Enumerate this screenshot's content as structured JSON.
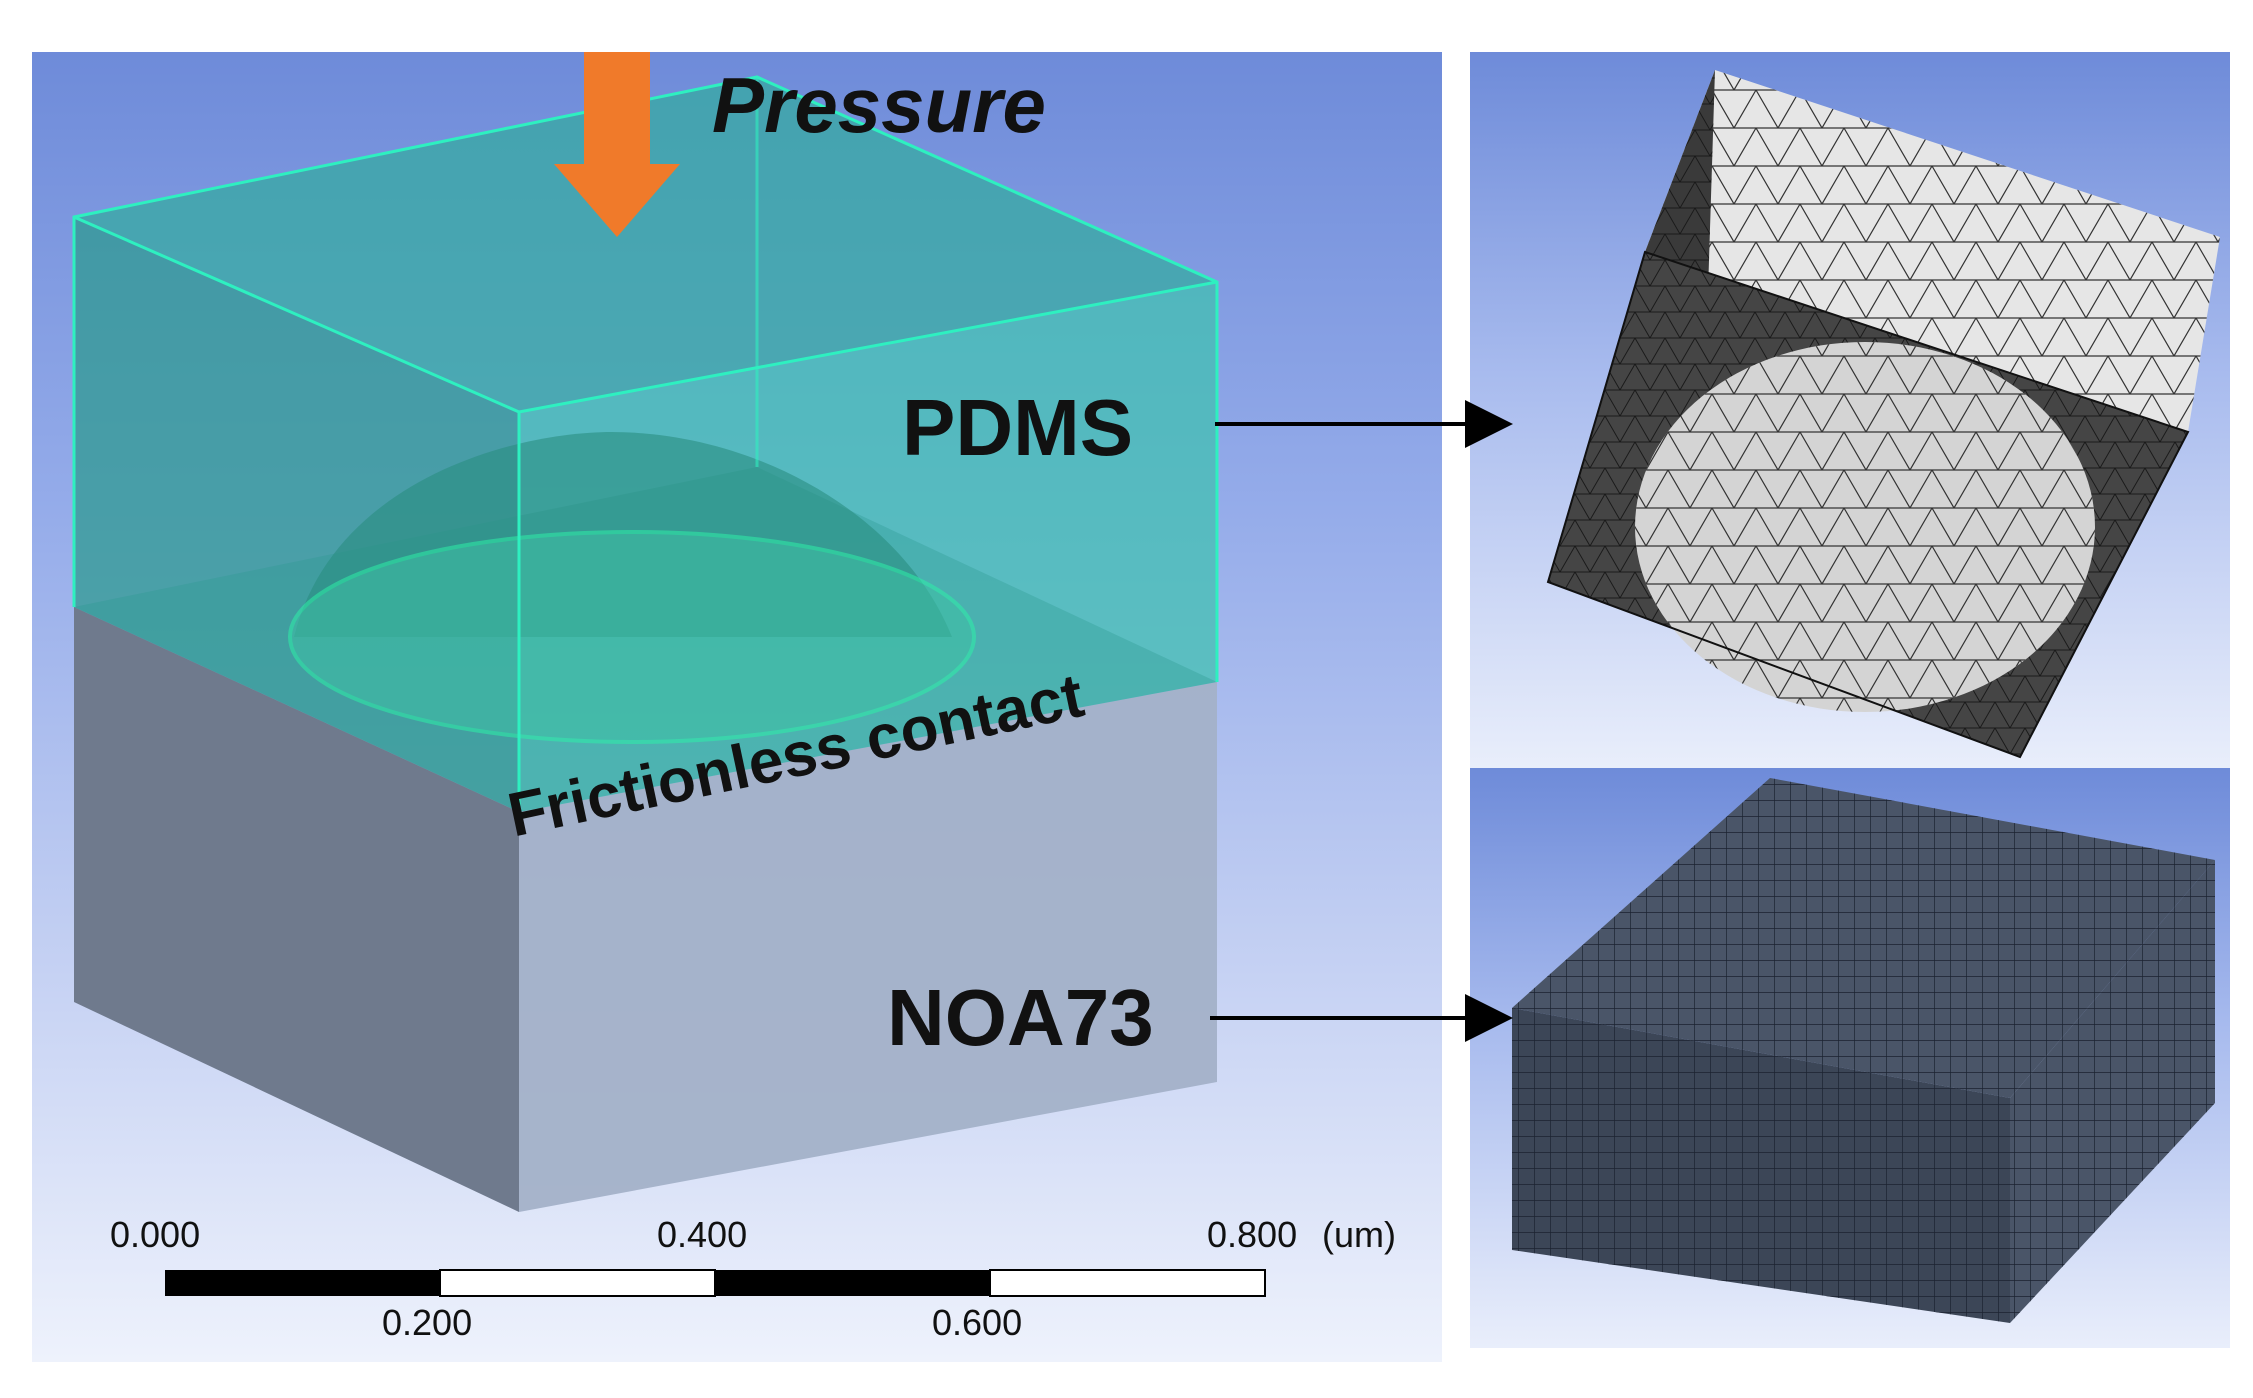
{
  "labels": {
    "pressure": "Pressure",
    "pdms": "PDMS",
    "noa73": "NOA73",
    "frictionless": "Frictionless contact"
  },
  "scale_bar": {
    "top_ticks": [
      "0.000",
      "0.400",
      "0.800"
    ],
    "bottom_ticks": [
      "0.200",
      "0.600"
    ],
    "unit": "(um)"
  },
  "colors": {
    "pdms_fill": "#3fc0b0",
    "pdms_edge": "#2ef0c0",
    "noa_fill": "#8a9ab5",
    "arrow": "#f07a2a"
  }
}
